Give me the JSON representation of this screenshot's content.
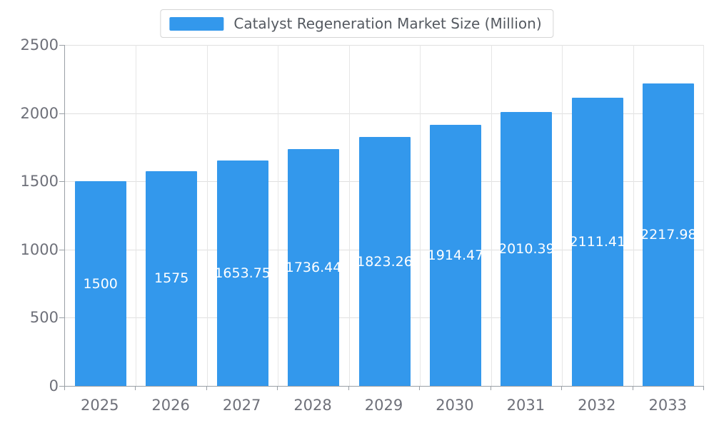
{
  "chart_data": {
    "type": "bar",
    "title": "Catalyst Regeneration Market Size (Million)",
    "categories": [
      "2025",
      "2026",
      "2027",
      "2028",
      "2029",
      "2030",
      "2031",
      "2032",
      "2033"
    ],
    "values": [
      1500,
      1575,
      1653.75,
      1736.44,
      1823.26,
      1914.47,
      2010.39,
      2111.41,
      2217.98
    ],
    "value_labels": [
      "1500",
      "1575",
      "1653.75",
      "1736.44",
      "1823.26",
      "1914.47",
      "2010.39",
      "2111.41",
      "2217.98"
    ],
    "xlabel": "",
    "ylabel": "",
    "ylim": [
      0,
      2500
    ],
    "yticks": [
      0,
      500,
      1000,
      1500,
      2000,
      2500
    ],
    "grid": true,
    "legend_position": "top-center",
    "bar_color": "#3398EC",
    "value_label_color": "#FFFFFF",
    "axis_label_color": "#6E7079"
  }
}
